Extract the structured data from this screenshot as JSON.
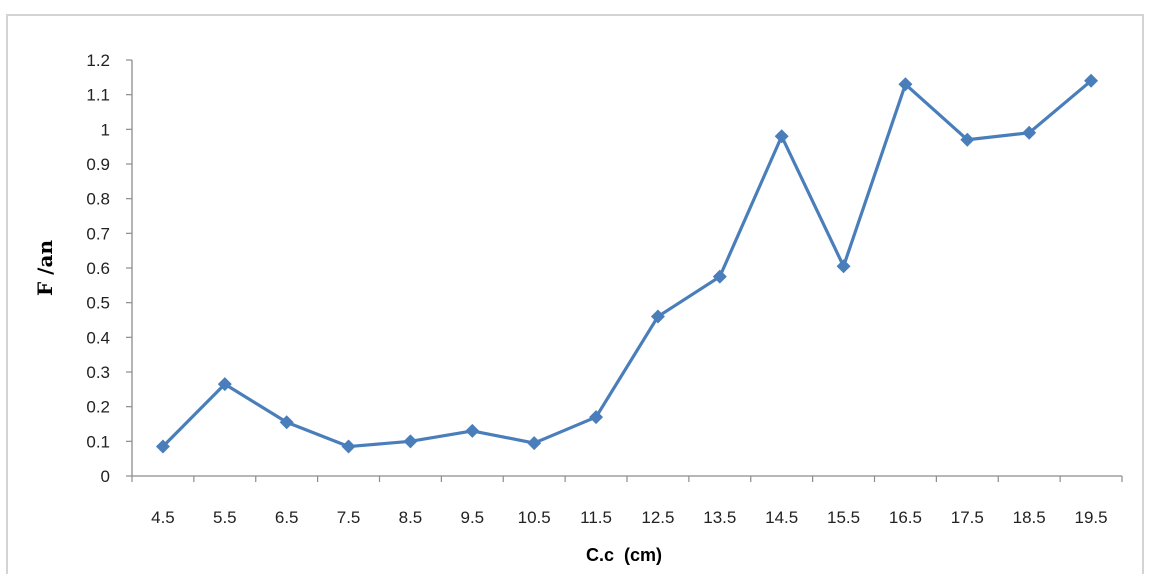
{
  "chart_data": {
    "type": "line",
    "title": "",
    "xlabel": "C.c  (cm)",
    "ylabel": "F /an",
    "categories": [
      "4.5",
      "5.5",
      "6.5",
      "7.5",
      "8.5",
      "9.5",
      "10.5",
      "11.5",
      "12.5",
      "13.5",
      "14.5",
      "15.5",
      "16.5",
      "17.5",
      "18.5",
      "19.5"
    ],
    "series": [
      {
        "values": [
          0.085,
          0.265,
          0.155,
          0.085,
          0.1,
          0.13,
          0.095,
          0.17,
          0.46,
          0.575,
          0.98,
          0.605,
          1.13,
          0.97,
          0.99,
          1.14
        ],
        "color": "#4a7ebb",
        "marker": "diamond"
      }
    ],
    "ylim": [
      0,
      1.2
    ],
    "yticks": [
      "0",
      "0.1",
      "0.2",
      "0.3",
      "0.4",
      "0.5",
      "0.6",
      "0.7",
      "0.8",
      "0.9",
      "1",
      "1.1",
      "1.2"
    ],
    "grid": false,
    "legend": "none"
  }
}
